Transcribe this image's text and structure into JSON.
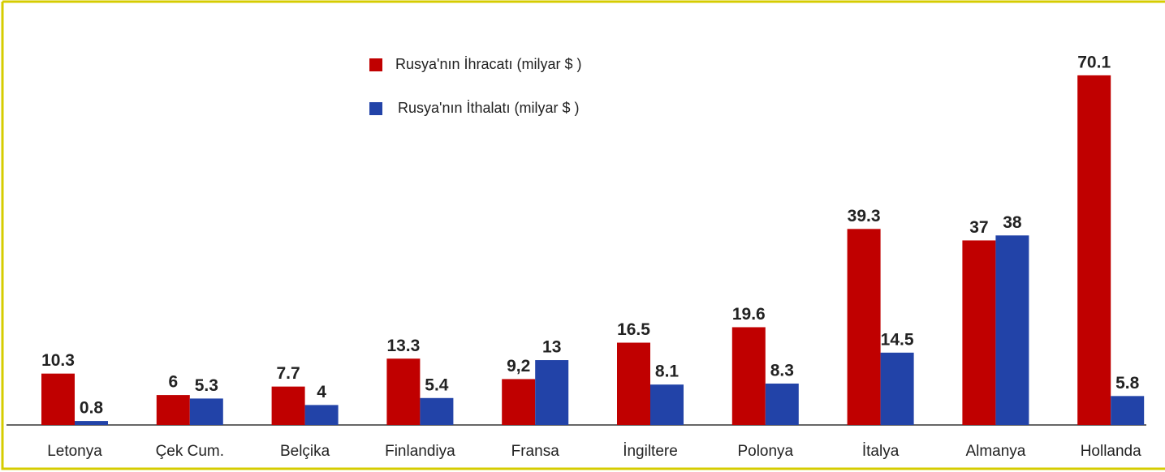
{
  "chart_data": {
    "type": "bar",
    "categories": [
      "Letonya",
      "Çek Cum.",
      "Belçika",
      "Finlandiya",
      "Fransa",
      "İngiltere",
      "Polonya",
      "İtalya",
      "Almanya",
      "Hollanda"
    ],
    "series": [
      {
        "name": "Rusya'nın İhracatı (milyar $ )",
        "color": "#c00000",
        "values": [
          10.3,
          6,
          7.7,
          13.3,
          9.2,
          16.5,
          19.6,
          39.3,
          37,
          70.1
        ],
        "value_labels": [
          "10.3",
          "6",
          "7.7",
          "13.3",
          "9,2",
          "16.5",
          "19.6",
          "39.3",
          "37",
          "70.1"
        ]
      },
      {
        "name": "Rusya'nın İthalatı (milyar $ )",
        "color": "#2243a8",
        "values": [
          0.8,
          5.3,
          4,
          5.4,
          13,
          8.1,
          8.3,
          14.5,
          38,
          5.8
        ]
      }
    ],
    "ylim": [
      0,
      80
    ]
  }
}
